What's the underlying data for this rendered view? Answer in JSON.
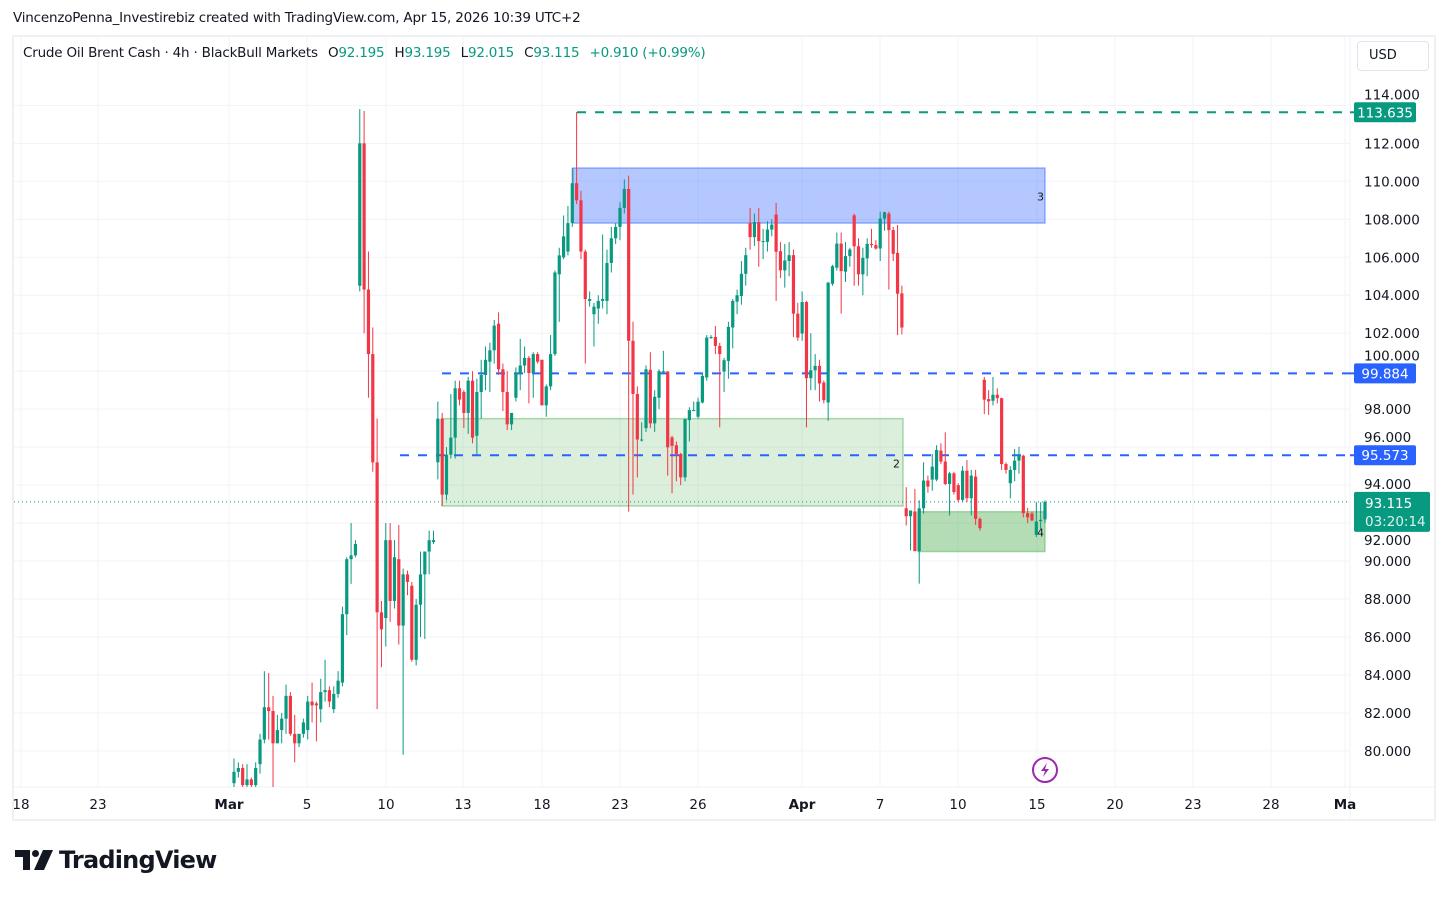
{
  "credit": "VincenzoPenna_Investirebiz created with TradingView.com, Apr 15, 2026 10:39 UTC+2",
  "legend": {
    "symbol": "Crude Oil Brent Cash · 4h · BlackBull Markets",
    "open_label": "O",
    "open": "92.195",
    "high_label": "H",
    "high": "93.195",
    "low_label": "L",
    "low": "92.015",
    "close_label": "C",
    "close": "93.115",
    "change": "+0.910 (+0.99%)"
  },
  "currency_button": "USD",
  "logo_text": "TradingView",
  "colors": {
    "up": "#089981",
    "down": "#f23645",
    "level_blue": "#2962ff",
    "level_green": "#089981",
    "zone_blue": "#2962ff",
    "zone_green": "#4caf50",
    "event_icon": "#9c27b0"
  },
  "chart_data": {
    "type": "candlestick",
    "title": "Crude Oil Brent Cash · 4h · BlackBull Markets",
    "interval": "4h",
    "currency": "USD",
    "ylim": [
      78.1,
      117.6
    ],
    "grid": true,
    "y_ticks": [
      "80.000",
      "82.000",
      "84.000",
      "86.000",
      "88.000",
      "90.000",
      "92.000",
      "94.000",
      "96.000",
      "98.000",
      "100.000",
      "102.000",
      "104.000",
      "106.000",
      "108.000",
      "110.000",
      "112.000",
      "114.000"
    ],
    "x_tick_labels": [
      {
        "text": "18",
        "bold": false
      },
      {
        "text": "23",
        "bold": false
      },
      {
        "text": "Mar",
        "bold": true
      },
      {
        "text": "5",
        "bold": false
      },
      {
        "text": "10",
        "bold": false
      },
      {
        "text": "13",
        "bold": false
      },
      {
        "text": "18",
        "bold": false
      },
      {
        "text": "23",
        "bold": false
      },
      {
        "text": "26",
        "bold": false
      },
      {
        "text": "Apr",
        "bold": true
      },
      {
        "text": "7",
        "bold": false
      },
      {
        "text": "10",
        "bold": false
      },
      {
        "text": "15",
        "bold": false
      },
      {
        "text": "20",
        "bold": false
      },
      {
        "text": "23",
        "bold": false
      },
      {
        "text": "28",
        "bold": false
      },
      {
        "text": "Ma",
        "bold": true
      }
    ],
    "ohlc": [
      [
        78.3,
        79.6,
        78.0,
        78.9
      ],
      [
        78.9,
        79.4,
        78.6,
        79.1
      ],
      [
        79.1,
        79.3,
        78.0,
        78.2
      ],
      [
        78.2,
        79.3,
        78.0,
        78.5
      ],
      [
        78.5,
        78.6,
        78.0,
        78.2
      ],
      [
        78.2,
        79.4,
        78.0,
        79.1
      ],
      [
        79.3,
        80.9,
        78.8,
        80.6
      ],
      [
        80.6,
        84.2,
        80.4,
        82.3
      ],
      [
        82.3,
        84.1,
        80.6,
        82.1
      ],
      [
        82.1,
        82.9,
        78.0,
        80.4
      ],
      [
        80.4,
        81.9,
        80.4,
        81.1
      ],
      [
        81.1,
        82.0,
        80.4,
        81.7
      ],
      [
        81.7,
        83.5,
        80.9,
        82.9
      ],
      [
        82.9,
        83.1,
        80.8,
        80.9
      ],
      [
        80.9,
        81.9,
        79.4,
        80.4
      ],
      [
        80.4,
        80.9,
        80.2,
        80.9
      ],
      [
        80.9,
        81.7,
        80.7,
        81.5
      ],
      [
        81.1,
        82.9,
        80.6,
        82.6
      ],
      [
        82.6,
        83.6,
        81.5,
        82.4
      ],
      [
        82.5,
        82.6,
        80.5,
        82.4
      ],
      [
        82.2,
        83.8,
        81.5,
        83.1
      ],
      [
        83.1,
        84.8,
        82.6,
        83.2
      ],
      [
        83.2,
        83.4,
        82.3,
        82.6
      ],
      [
        82.2,
        83.4,
        82.0,
        83.0
      ],
      [
        83.0,
        84.2,
        82.8,
        83.7
      ],
      [
        83.6,
        87.6,
        83.4,
        87.2
      ],
      [
        87.2,
        90.2,
        86.1,
        90.1
      ],
      [
        90.1,
        92.0,
        88.8,
        90.3
      ],
      [
        90.3,
        91.1,
        90.2,
        90.9
      ],
      [
        104.5,
        113.8,
        104.2,
        112.0
      ],
      [
        112.0,
        113.7,
        102.0,
        104.3
      ],
      [
        104.3,
        106.3,
        98.6,
        100.9
      ],
      [
        100.9,
        102.3,
        94.7,
        95.2
      ],
      [
        95.2,
        97.5,
        82.2,
        87.3
      ],
      [
        87.3,
        87.9,
        84.4,
        86.4
      ],
      [
        87.0,
        92.0,
        85.5,
        91.1
      ],
      [
        91.1,
        92.0,
        86.8,
        87.9
      ],
      [
        87.9,
        91.1,
        87.5,
        90.2
      ],
      [
        90.1,
        91.9,
        85.6,
        86.6
      ],
      [
        86.6,
        89.6,
        79.8,
        89.3
      ],
      [
        89.3,
        89.5,
        88.2,
        88.9
      ],
      [
        88.7,
        88.9,
        84.7,
        84.8
      ],
      [
        84.8,
        88.0,
        84.5,
        87.7
      ],
      [
        87.7,
        90.5,
        86.0,
        89.3
      ],
      [
        89.3,
        90.5,
        85.9,
        90.5
      ],
      [
        90.5,
        91.6,
        89.3,
        91.1
      ],
      [
        91.0,
        91.6,
        90.9,
        91.1
      ],
      [
        95.2,
        98.4,
        94.3,
        97.5
      ],
      [
        97.5,
        97.8,
        92.9,
        93.5
      ],
      [
        93.5,
        96.0,
        93.2,
        95.6
      ],
      [
        95.6,
        98.8,
        95.4,
        96.5
      ],
      [
        96.5,
        99.5,
        95.4,
        99.1
      ],
      [
        99.1,
        99.5,
        98.2,
        98.5
      ],
      [
        98.9,
        99.0,
        97.0,
        97.8
      ],
      [
        97.8,
        99.7,
        96.7,
        99.5
      ],
      [
        99.5,
        100.0,
        96.2,
        96.5
      ],
      [
        96.6,
        99.6,
        95.6,
        98.9
      ],
      [
        98.9,
        100.6,
        97.5,
        99.8
      ],
      [
        99.8,
        101.3,
        99.0,
        100.6
      ],
      [
        100.5,
        101.5,
        98.9,
        101.1
      ],
      [
        101.1,
        102.7,
        100.4,
        102.4
      ],
      [
        102.5,
        103.1,
        99.8,
        100.1
      ],
      [
        100.1,
        100.4,
        97.9,
        98.9
      ],
      [
        98.9,
        100.0,
        96.9,
        97.2
      ],
      [
        97.2,
        97.8,
        96.9,
        97.8
      ],
      [
        98.6,
        100.2,
        98.4,
        99.9
      ],
      [
        99.9,
        101.7,
        99.0,
        100.3
      ],
      [
        100.3,
        101.3,
        99.9,
        100.7
      ],
      [
        100.7,
        100.8,
        98.3,
        99.9
      ],
      [
        99.9,
        101.0,
        98.6,
        100.9
      ],
      [
        100.9,
        101.0,
        100.4,
        100.5
      ],
      [
        100.6,
        100.6,
        98.2,
        98.2
      ],
      [
        98.2,
        99.3,
        97.6,
        99.2
      ],
      [
        99.2,
        101.9,
        99.0,
        100.9
      ],
      [
        100.9,
        105.3,
        100.8,
        105.2
      ],
      [
        105.1,
        106.5,
        102.6,
        106.1
      ],
      [
        106.0,
        108.2,
        105.9,
        107.1
      ],
      [
        106.3,
        108.7,
        106.1,
        107.8
      ],
      [
        107.8,
        110.7,
        107.6,
        109.9
      ],
      [
        109.9,
        113.65,
        108.8,
        109.0
      ],
      [
        109.0,
        109.5,
        105.9,
        106.3
      ],
      [
        106.3,
        106.4,
        100.4,
        103.8
      ],
      [
        103.7,
        104.2,
        103.4,
        103.8
      ],
      [
        103.0,
        103.6,
        101.3,
        103.4
      ],
      [
        103.3,
        104.0,
        102.5,
        103.7
      ],
      [
        103.7,
        107.2,
        103.3,
        103.8
      ],
      [
        103.7,
        106.4,
        103.0,
        105.7
      ],
      [
        105.7,
        107.6,
        105.2,
        107.0
      ],
      [
        107.0,
        107.8,
        106.7,
        107.6
      ],
      [
        107.6,
        108.9,
        106.9,
        108.6
      ],
      [
        108.6,
        110.1,
        108.3,
        109.6
      ],
      [
        109.6,
        110.3,
        92.6,
        101.6
      ],
      [
        101.6,
        102.6,
        93.5,
        98.8
      ],
      [
        98.8,
        99.2,
        94.4,
        96.4
      ],
      [
        96.4,
        97.3,
        96.3,
        96.4
      ],
      [
        97.0,
        100.3,
        96.8,
        100.1
      ],
      [
        100.07,
        101.0,
        97.0,
        97.25
      ],
      [
        97.25,
        99.0,
        96.8,
        98.65
      ],
      [
        98.6,
        100.1,
        98.0,
        100.0
      ],
      [
        100.0,
        101.07,
        99.9,
        100.0
      ],
      [
        99.98,
        100.0,
        94.5,
        95.99
      ],
      [
        96.51,
        96.6,
        93.57,
        96.07
      ],
      [
        96.1,
        96.3,
        94.2,
        95.64
      ],
      [
        95.64,
        95.7,
        94.0,
        94.41
      ],
      [
        94.41,
        97.5,
        94.2,
        97.48
      ],
      [
        97.42,
        98.1,
        96.3,
        97.95
      ],
      [
        97.95,
        98.4,
        97.9,
        97.95
      ],
      [
        97.6,
        98.6,
        97.5,
        98.39
      ],
      [
        98.35,
        99.9,
        98.3,
        99.75
      ],
      [
        99.67,
        101.9,
        99.5,
        101.77
      ],
      [
        101.77,
        101.9,
        101.7,
        101.8
      ],
      [
        101.8,
        102.38,
        100.9,
        101.33
      ],
      [
        101.33,
        101.5,
        97.04,
        100.9
      ],
      [
        99.98,
        100.7,
        98.9,
        100.58
      ],
      [
        100.54,
        102.6,
        99.6,
        102.33
      ],
      [
        102.3,
        103.8,
        101.2,
        103.7
      ],
      [
        103.66,
        104.3,
        103.0,
        104.0
      ],
      [
        103.96,
        105.8,
        103.5,
        105.13
      ],
      [
        105.13,
        106.5,
        104.5,
        106.11
      ],
      [
        107.8,
        108.6,
        106.4,
        107.06
      ],
      [
        107.06,
        108.3,
        106.6,
        107.85
      ],
      [
        107.85,
        108.6,
        105.5,
        106.85
      ],
      [
        106.8,
        107.5,
        105.9,
        106.85
      ],
      [
        106.81,
        107.9,
        106.3,
        107.46
      ],
      [
        107.46,
        108.0,
        107.1,
        107.72
      ],
      [
        108.25,
        108.86,
        103.7,
        106.29
      ],
      [
        106.32,
        106.8,
        104.9,
        105.31
      ],
      [
        105.31,
        106.7,
        104.4,
        105.83
      ],
      [
        105.8,
        106.8,
        105.0,
        106.11
      ],
      [
        106.11,
        106.4,
        101.8,
        103.03
      ],
      [
        103.03,
        103.6,
        101.6,
        101.77
      ],
      [
        101.98,
        104.2,
        101.6,
        103.64
      ],
      [
        103.64,
        103.7,
        97.04,
        99.63
      ],
      [
        99.63,
        102.0,
        99.0,
        100.05
      ],
      [
        100.05,
        100.9,
        99.0,
        100.28
      ],
      [
        100.28,
        100.6,
        98.4,
        99.35
      ],
      [
        99.4,
        99.5,
        98.3,
        98.47
      ],
      [
        98.35,
        104.7,
        97.39,
        104.66
      ],
      [
        104.6,
        105.6,
        104.5,
        105.53
      ],
      [
        105.45,
        107.3,
        105.3,
        106.72
      ],
      [
        106.72,
        107.3,
        103.03,
        105.27
      ],
      [
        105.24,
        106.8,
        104.7,
        106.06
      ],
      [
        106.06,
        106.5,
        105.5,
        106.41
      ],
      [
        108.21,
        108.3,
        104.5,
        106.58
      ],
      [
        106.58,
        107.0,
        104.5,
        105.1
      ],
      [
        105.1,
        106.5,
        104.0,
        105.97
      ],
      [
        105.94,
        107.0,
        105.0,
        106.7
      ],
      [
        106.7,
        107.5,
        106.5,
        106.64
      ],
      [
        106.64,
        106.9,
        106.4,
        106.46
      ],
      [
        106.46,
        108.4,
        105.8,
        108.04
      ],
      [
        108.04,
        108.4,
        107.4,
        108.37
      ],
      [
        108.3,
        108.4,
        104.3,
        107.43
      ],
      [
        107.43,
        107.6,
        105.8,
        106.18
      ],
      [
        106.23,
        107.7,
        101.9,
        104.08
      ],
      [
        104.1,
        104.5,
        101.94,
        102.3
      ],
      [
        92.78,
        93.89,
        91.87,
        92.36
      ],
      [
        92.36,
        92.66,
        90.56,
        92.66
      ],
      [
        92.61,
        93.8,
        90.52,
        90.52
      ],
      [
        90.52,
        93.2,
        88.81,
        92.78
      ],
      [
        92.78,
        95.2,
        92.5,
        94.24
      ],
      [
        94.24,
        94.5,
        93.6,
        93.92
      ],
      [
        94.29,
        95.64,
        93.7,
        94.97
      ],
      [
        94.29,
        96.1,
        94.2,
        95.85
      ],
      [
        95.82,
        96.2,
        95.1,
        95.24
      ],
      [
        95.24,
        96.78,
        94.0,
        94.06
      ],
      [
        94.06,
        94.7,
        92.4,
        94.62
      ],
      [
        94.62,
        94.7,
        93.5,
        93.63
      ],
      [
        94.0,
        94.1,
        93.1,
        93.22
      ],
      [
        93.22,
        95.0,
        93.1,
        94.76
      ],
      [
        94.76,
        95.32,
        93.1,
        93.31
      ],
      [
        93.31,
        94.8,
        92.4,
        94.5
      ],
      [
        94.45,
        94.8,
        91.9,
        92.22
      ],
      [
        92.22,
        92.3,
        91.6,
        91.73
      ],
      [
        99.55,
        99.7,
        97.74,
        98.5
      ],
      [
        98.53,
        99.0,
        97.7,
        98.41
      ],
      [
        98.44,
        99.7,
        98.2,
        98.76
      ],
      [
        98.76,
        99.1,
        98.3,
        98.58
      ],
      [
        98.58,
        98.6,
        94.8,
        95.11
      ],
      [
        95.11,
        95.2,
        94.6,
        94.8
      ],
      [
        94.1,
        95.0,
        93.3,
        94.8
      ],
      [
        94.8,
        95.9,
        94.2,
        95.29
      ],
      [
        95.29,
        96.02,
        94.6,
        95.55
      ],
      [
        95.55,
        95.6,
        92.3,
        92.52
      ],
      [
        92.52,
        92.8,
        92.0,
        92.3
      ],
      [
        92.5,
        92.6,
        92.1,
        92.14
      ],
      [
        91.38,
        93.1,
        91.26,
        92.08
      ],
      [
        92.1,
        93.1,
        91.7,
        92.17
      ],
      [
        92.195,
        93.195,
        92.015,
        93.115
      ]
    ],
    "levels": [
      {
        "price": 113.635,
        "label": "113.635",
        "color": "#089981",
        "style": "dashed"
      },
      {
        "price": 99.884,
        "label": "99.884",
        "color": "#2962ff",
        "style": "dashed"
      },
      {
        "price": 95.573,
        "label": "95.573",
        "color": "#2962ff",
        "style": "dashed"
      }
    ],
    "zones": [
      {
        "label": "3",
        "top": 110.7,
        "bottom": 107.8,
        "color": "#2962ff"
      },
      {
        "label": "2",
        "top": 97.5,
        "bottom": 92.9,
        "color": "#4caf50"
      },
      {
        "label": "4",
        "top": 92.6,
        "bottom": 90.5,
        "color": "#4caf50"
      }
    ],
    "last_price": {
      "price": 93.115,
      "label": "93.115",
      "countdown": "03:20:14"
    }
  }
}
